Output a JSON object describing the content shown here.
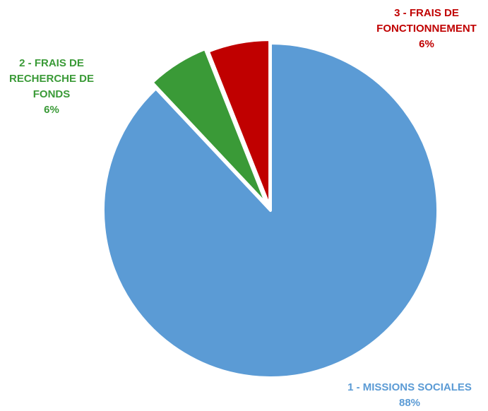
{
  "chart_data": {
    "type": "pie",
    "title": "",
    "start_angle_deg": 0,
    "direction": "clockwise",
    "stroke_color": "#ffffff",
    "slices": [
      {
        "id": "missions",
        "label_lines": [
          "1 - MISSIONS SOCIALES"
        ],
        "percent_label": "88%",
        "value": 88,
        "color": "#5B9BD5"
      },
      {
        "id": "recherche",
        "label_lines": [
          "2 - FRAIS DE",
          "RECHERCHE DE",
          "FONDS"
        ],
        "percent_label": "6%",
        "value": 6,
        "color": "#3A9A37"
      },
      {
        "id": "fonctionnement",
        "label_lines": [
          "3 - FRAIS DE",
          "FONCTIONNEMENT"
        ],
        "percent_label": "6%",
        "value": 6,
        "color": "#C00000"
      }
    ]
  }
}
